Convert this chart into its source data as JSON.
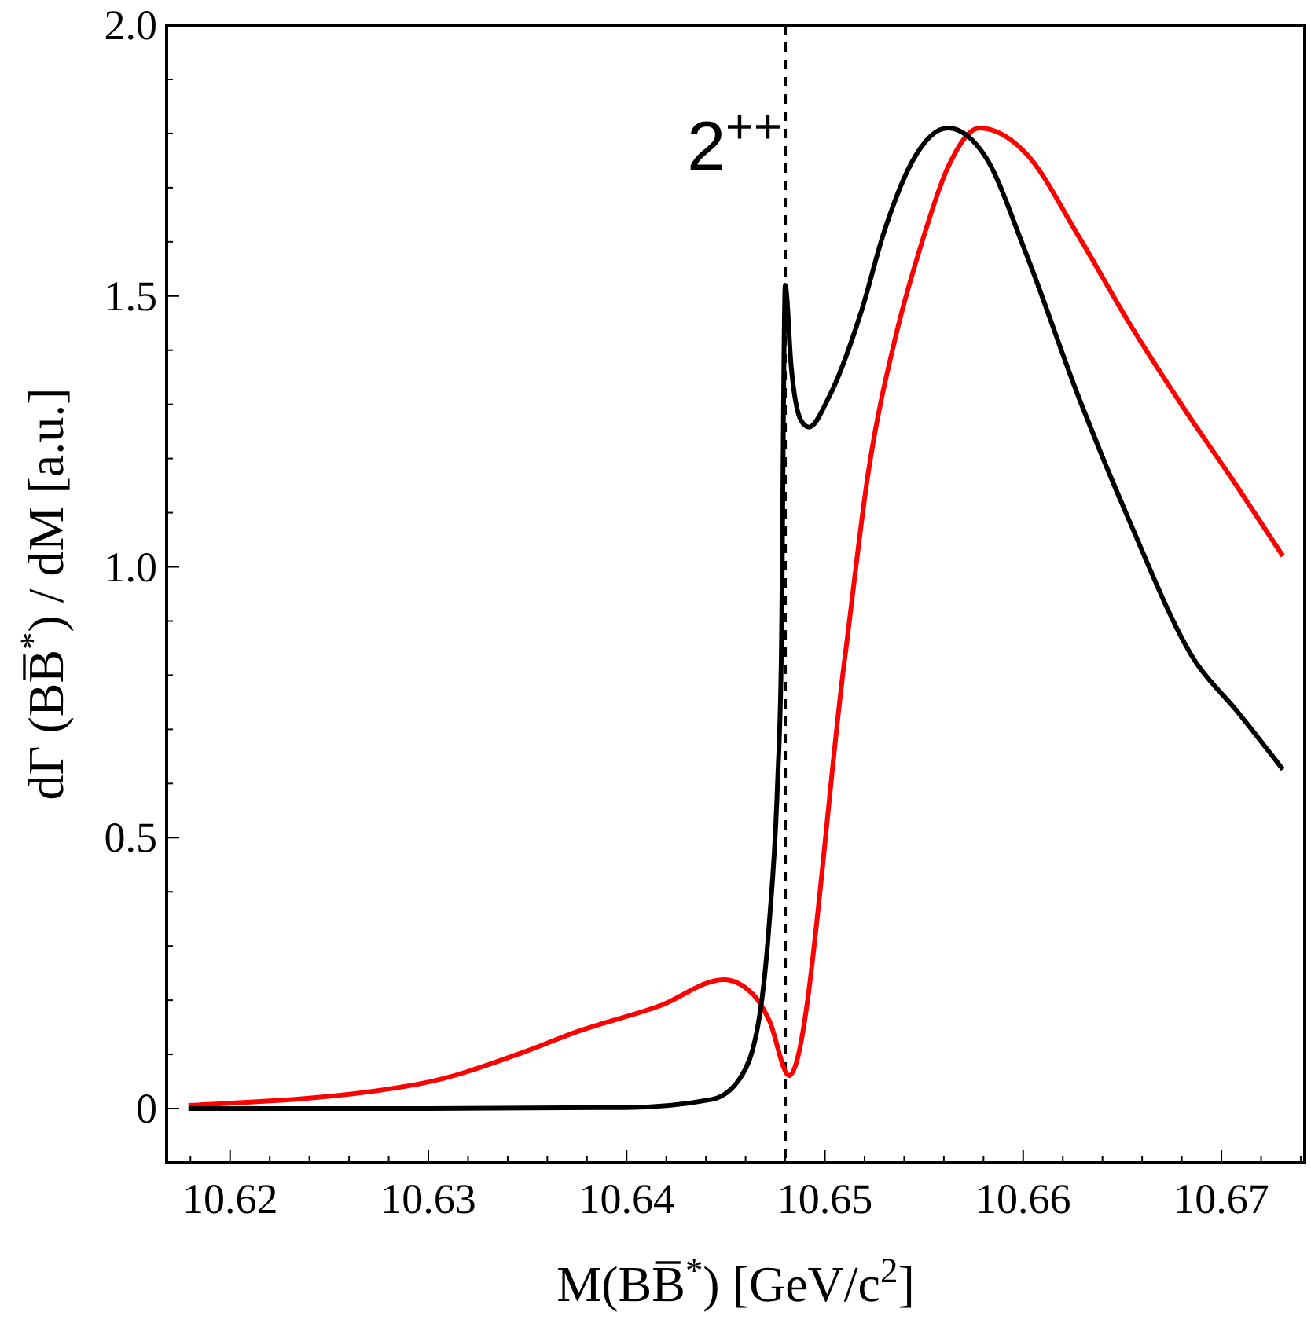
{
  "chart_data": {
    "type": "line",
    "xlabel": "M(BB̅$^{*}$) [GeV/c$^{2}$]",
    "ylabel": "dΓ (BB̅$^{*}$) / dM   [a.u.]",
    "xlim": [
      10.6168,
      10.6742
    ],
    "ylim": [
      -0.1,
      2.0
    ],
    "xticks": [
      {
        "value": 10.618,
        "label": null
      },
      10.62,
      {
        "value": 10.622,
        "label": null
      },
      {
        "value": 10.624,
        "label": null
      },
      {
        "value": 10.626,
        "label": null
      },
      {
        "value": 10.628,
        "label": null
      },
      10.63,
      {
        "value": 10.632,
        "label": null
      },
      {
        "value": 10.634,
        "label": null
      },
      {
        "value": 10.636,
        "label": null
      },
      {
        "value": 10.638,
        "label": null
      },
      10.64,
      {
        "value": 10.642,
        "label": null
      },
      {
        "value": 10.644,
        "label": null
      },
      {
        "value": 10.646,
        "label": null
      },
      {
        "value": 10.648,
        "label": null
      },
      10.65,
      {
        "value": 10.652,
        "label": null
      },
      {
        "value": 10.654,
        "label": null
      },
      {
        "value": 10.656,
        "label": null
      },
      {
        "value": 10.658,
        "label": null
      },
      10.66,
      {
        "value": 10.662,
        "label": null
      },
      {
        "value": 10.664,
        "label": null
      },
      {
        "value": 10.666,
        "label": null
      },
      {
        "value": 10.668,
        "label": null
      },
      10.67,
      {
        "value": 10.672,
        "label": null
      },
      {
        "value": 10.674,
        "label": null
      }
    ],
    "yticks": [
      0,
      {
        "value": 0.1,
        "label": null
      },
      {
        "value": 0.2,
        "label": null
      },
      {
        "value": 0.3,
        "label": null
      },
      {
        "value": 0.4,
        "label": null
      },
      {
        "value": 0.5,
        "label": "0.5"
      },
      {
        "value": 0.6,
        "label": null
      },
      {
        "value": 0.7,
        "label": null
      },
      {
        "value": 0.8,
        "label": null
      },
      {
        "value": 0.9,
        "label": null
      },
      {
        "value": 1.0,
        "label": "1.0"
      },
      {
        "value": 1.1,
        "label": null
      },
      {
        "value": 1.2,
        "label": null
      },
      {
        "value": 1.3,
        "label": null
      },
      {
        "value": 1.4,
        "label": null
      },
      {
        "value": 1.5,
        "label": "1.5"
      },
      {
        "value": 1.6,
        "label": null
      },
      {
        "value": 1.7,
        "label": null
      },
      {
        "value": 1.8,
        "label": null
      },
      {
        "value": 1.9,
        "label": null
      },
      {
        "value": 2.0,
        "label": "2.0"
      }
    ],
    "grid": false,
    "ref_lines": [
      {
        "axis": "x",
        "value": 10.648,
        "line_style": "dashed",
        "color": "#000000"
      }
    ],
    "annotations": [
      {
        "text": "2$^{++}$",
        "x": 10.648,
        "y": 1.75
      }
    ],
    "series": [
      {
        "color": "#ff0000",
        "x": [
          10.6179,
          10.6296,
          10.6348,
          10.6375,
          10.6417,
          10.6449,
          10.6464,
          10.6472,
          10.6482,
          10.651,
          10.6522,
          10.6536,
          10.6549,
          10.6562,
          10.6578,
          10.6601,
          10.6628,
          10.6654,
          10.6681,
          10.6708,
          10.6731
        ],
        "values": [
          0.006,
          0.046,
          0.104,
          0.142,
          0.19,
          0.238,
          0.21,
          0.162,
          0.061,
          0.83,
          1.177,
          1.43,
          1.6,
          1.737,
          1.81,
          1.765,
          1.61,
          1.447,
          1.293,
          1.148,
          1.02
        ]
      },
      {
        "color": "#000000",
        "x": [
          10.6179,
          10.63,
          10.64,
          10.6443,
          10.6457,
          10.6467,
          10.6472,
          10.6476,
          10.6478,
          10.648,
          10.6483,
          10.6488,
          10.6492,
          10.6502,
          10.6518,
          10.653,
          10.6544,
          10.6562,
          10.6581,
          10.6601,
          10.6628,
          10.6654,
          10.6686,
          10.6708,
          10.6731
        ],
        "values": [
          0,
          0,
          0.002,
          0.017,
          0.055,
          0.17,
          0.345,
          0.59,
          0.83,
          1.52,
          1.37,
          1.27,
          1.258,
          1.313,
          1.467,
          1.62,
          1.748,
          1.81,
          1.757,
          1.583,
          1.313,
          1.081,
          0.83,
          0.733,
          0.626
        ]
      }
    ]
  }
}
